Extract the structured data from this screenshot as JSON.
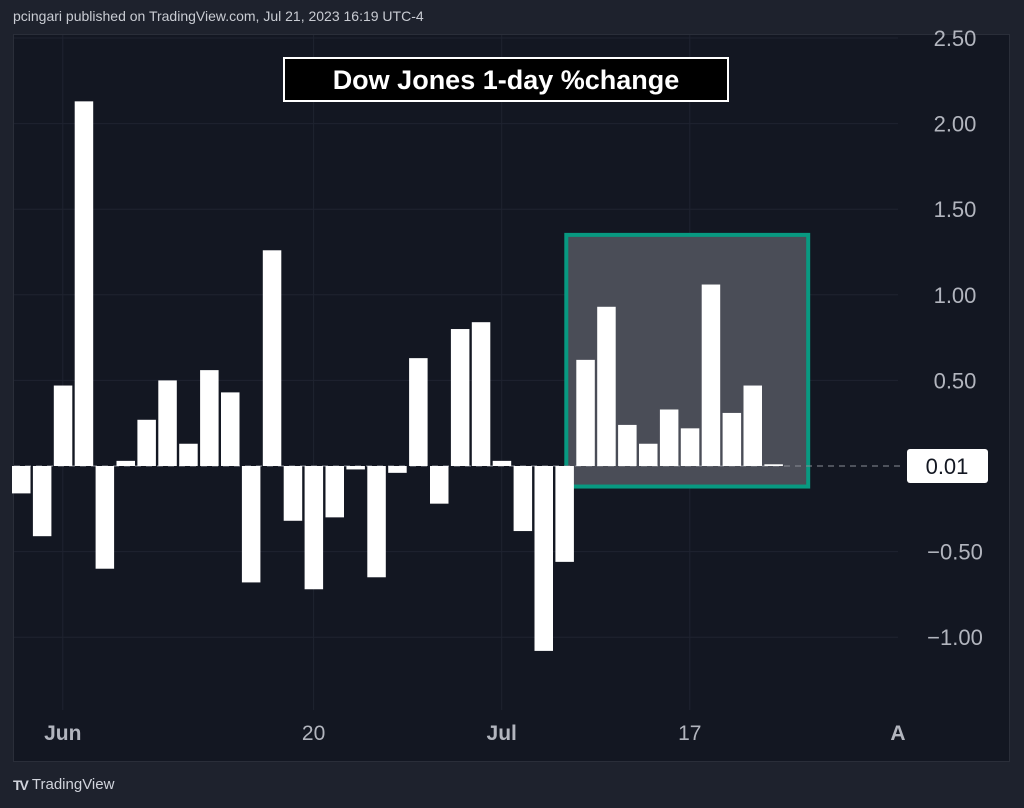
{
  "header": {
    "published": "pcingari published on TradingView.com, Jul 21, 2023 16:19 UTC-4"
  },
  "footer": {
    "brand": "TradingView"
  },
  "colors": {
    "bar": "#ffffff",
    "highlight_border": "#089981",
    "highlight_fill": "#4a4d57",
    "bg": "#131722"
  },
  "chart_data": {
    "type": "bar",
    "title": "Dow Jones 1-day %change",
    "xlabel": "",
    "ylabel": "",
    "ylim": [
      -1.5,
      2.5
    ],
    "y_ticks": [
      2.5,
      2.0,
      1.5,
      1.0,
      0.5,
      -0.5,
      -1.0
    ],
    "y_tick_labels": [
      "2.50",
      "2.00",
      "1.50",
      "1.00",
      "0.50",
      "−0.50",
      "−1.00"
    ],
    "x_tick_labels": [
      {
        "label": "Jun",
        "index": 2
      },
      {
        "label": "20",
        "index": 14
      },
      {
        "label": "Jul",
        "index": 23
      },
      {
        "label": "17",
        "index": 32
      },
      {
        "label": "A",
        "index": 42
      }
    ],
    "values": [
      -0.16,
      -0.41,
      0.47,
      2.13,
      -0.6,
      0.03,
      0.27,
      0.5,
      0.13,
      0.56,
      0.43,
      -0.68,
      1.26,
      -0.32,
      -0.72,
      -0.3,
      -0.02,
      -0.65,
      -0.04,
      0.63,
      -0.22,
      0.8,
      0.84,
      0.03,
      -0.38,
      -1.08,
      -0.56,
      0.62,
      0.93,
      0.24,
      0.13,
      0.33,
      0.22,
      1.06,
      0.31,
      0.47,
      0.01
    ],
    "last_value_label": "0.01",
    "highlight_range": {
      "start_index": 27,
      "end_index": 38,
      "y_from": -0.12,
      "y_to": 1.35
    },
    "grid": true
  }
}
